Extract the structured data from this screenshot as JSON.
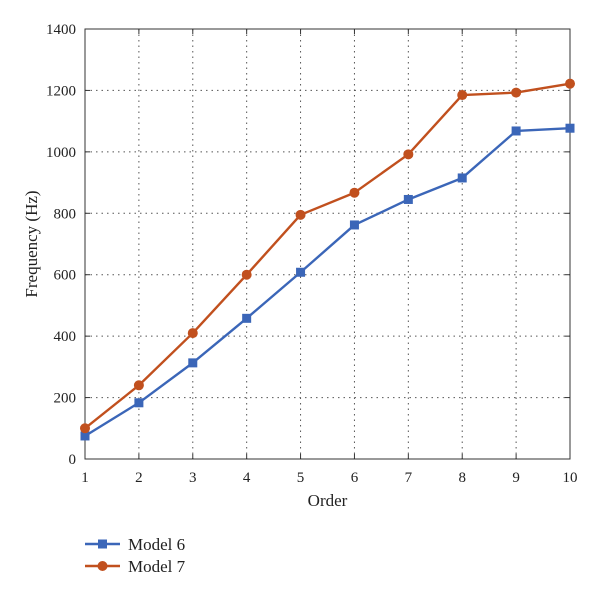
{
  "chart_data": {
    "type": "line",
    "xlabel": "Order",
    "ylabel": "Frequency (Hz)",
    "x": [
      1,
      2,
      3,
      4,
      5,
      6,
      7,
      8,
      9,
      10
    ],
    "xlim": [
      1,
      10
    ],
    "ylim": [
      0,
      1400
    ],
    "xticks": [
      "1",
      "2",
      "3",
      "4",
      "5",
      "6",
      "7",
      "8",
      "9",
      "10"
    ],
    "yticks": [
      "0",
      "200",
      "400",
      "600",
      "800",
      "1000",
      "1200",
      "1400"
    ],
    "grid": true,
    "legend_position": "bottom-left, below plot",
    "series": [
      {
        "name": "Model 6",
        "color": "#3b66b8",
        "marker": "square",
        "values": [
          75,
          183,
          313,
          458,
          608,
          762,
          845,
          915,
          1068,
          1077
        ]
      },
      {
        "name": "Model 7",
        "color": "#c1501e",
        "marker": "circle",
        "values": [
          100,
          240,
          410,
          600,
          795,
          867,
          992,
          1185,
          1193,
          1222
        ]
      }
    ]
  }
}
